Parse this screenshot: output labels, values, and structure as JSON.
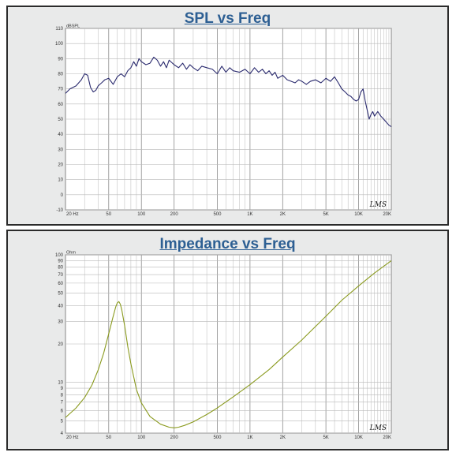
{
  "charts": [
    {
      "title": "SPL vs Freq",
      "watermark": "LMS"
    },
    {
      "title": "Impedance vs Freq",
      "watermark": "LMS"
    }
  ],
  "chart_data": [
    {
      "type": "line",
      "title": "SPL vs Freq",
      "ylabel": "dBSPL",
      "xscale": "log",
      "xlim": [
        20,
        20000
      ],
      "ylim": [
        -10,
        110
      ],
      "grid": true,
      "x_tick_labels": [
        "20 Hz",
        "50",
        "100",
        "200",
        "500",
        "1K",
        "2K",
        "5K",
        "10K",
        "20K"
      ],
      "y_tick_labels": [
        "110",
        "100",
        "90",
        "80",
        "70",
        "60",
        "50",
        "40",
        "30",
        "20",
        "10",
        "0",
        "-10"
      ],
      "line_color": "#2a2a6e",
      "series": [
        {
          "x": [
            20,
            22,
            25,
            28,
            30,
            32,
            34,
            36,
            38,
            40,
            43,
            46,
            50,
            55,
            60,
            65,
            70,
            75,
            80,
            85,
            90,
            95,
            100,
            110,
            120,
            130,
            140,
            150,
            160,
            170,
            180,
            200,
            220,
            240,
            260,
            280,
            300,
            330,
            360,
            400,
            450,
            500,
            550,
            600,
            650,
            700,
            800,
            900,
            1000,
            1100,
            1200,
            1300,
            1400,
            1500,
            1600,
            1700,
            1800,
            2000,
            2200,
            2400,
            2600,
            2800,
            3000,
            3300,
            3600,
            4000,
            4500,
            5000,
            5500,
            6000,
            6500,
            7000,
            7500,
            8000,
            8500,
            9000,
            9500,
            10000,
            10500,
            11000,
            11500,
            12000,
            12500,
            13000,
            13500,
            14000,
            15000,
            16000,
            17000,
            18000,
            19000,
            20000
          ],
          "y": [
            67,
            70,
            72,
            76,
            80,
            79,
            71,
            68,
            69,
            72,
            74,
            76,
            77,
            73,
            78,
            80,
            78,
            82,
            84,
            88,
            85,
            90,
            88,
            86,
            87,
            91,
            89,
            85,
            88,
            84,
            89,
            86,
            84,
            87,
            83,
            86,
            84,
            82,
            85,
            84,
            83,
            80,
            85,
            81,
            84,
            82,
            81,
            83,
            80,
            84,
            81,
            83,
            80,
            82,
            79,
            81,
            77,
            79,
            76,
            75,
            74,
            76,
            75,
            73,
            75,
            76,
            74,
            77,
            75,
            78,
            74,
            70,
            68,
            66,
            65,
            63,
            62,
            63,
            68,
            70,
            62,
            56,
            50,
            53,
            55,
            52,
            55,
            52,
            50,
            48,
            46,
            45
          ]
        }
      ]
    },
    {
      "type": "line",
      "title": "Impedance vs Freq",
      "ylabel": "Ohm",
      "xscale": "log",
      "yscale": "log",
      "xlim": [
        20,
        20000
      ],
      "ylim": [
        4,
        100
      ],
      "grid": true,
      "x_tick_labels": [
        "20 Hz",
        "50",
        "100",
        "200",
        "500",
        "1K",
        "2K",
        "5K",
        "10K",
        "20K"
      ],
      "y_tick_labels": [
        "100",
        "90",
        "80",
        "70",
        "60",
        "50",
        "40",
        "30",
        "20",
        "10",
        "9",
        "8",
        "7",
        "6",
        "5",
        "4"
      ],
      "line_color": "#8a9a1e",
      "series": [
        {
          "x": [
            20,
            25,
            30,
            35,
            40,
            45,
            50,
            55,
            58,
            60,
            62,
            64,
            66,
            70,
            75,
            80,
            90,
            100,
            120,
            150,
            180,
            200,
            220,
            250,
            300,
            400,
            500,
            700,
            1000,
            1500,
            2000,
            3000,
            5000,
            7000,
            10000,
            14000,
            20000
          ],
          "y": [
            5.3,
            6.3,
            7.6,
            9.5,
            12.5,
            17,
            24,
            33,
            39,
            42,
            43,
            41,
            37,
            28,
            19,
            14,
            8.8,
            6.9,
            5.4,
            4.7,
            4.45,
            4.4,
            4.45,
            4.6,
            4.9,
            5.6,
            6.3,
            7.7,
            9.6,
            12.6,
            15.8,
            21.5,
            33,
            44,
            57,
            72,
            90
          ]
        }
      ]
    }
  ]
}
